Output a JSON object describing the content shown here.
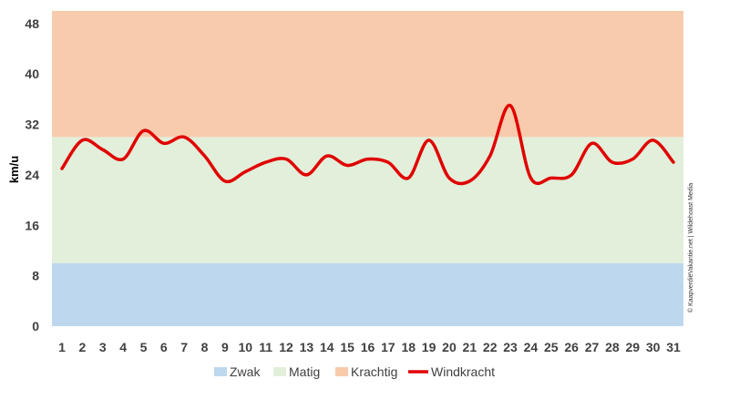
{
  "chart_data": {
    "type": "line",
    "title": "",
    "xlabel": "",
    "ylabel": "km/u",
    "categories": [
      "1",
      "2",
      "3",
      "4",
      "5",
      "6",
      "7",
      "8",
      "9",
      "10",
      "11",
      "12",
      "13",
      "14",
      "15",
      "16",
      "17",
      "18",
      "19",
      "20",
      "21",
      "22",
      "23",
      "24",
      "25",
      "26",
      "27",
      "28",
      "29",
      "30",
      "31"
    ],
    "yticks": [
      0,
      8,
      16,
      24,
      32,
      40,
      48
    ],
    "ylim": [
      0,
      50
    ],
    "bands": [
      {
        "name": "Zwak",
        "from": 0,
        "to": 10,
        "color": "#bdd7ee"
      },
      {
        "name": "Matig",
        "from": 10,
        "to": 30,
        "color": "#e2efda"
      },
      {
        "name": "Krachtig",
        "from": 30,
        "to": 50,
        "color": "#f8cbad"
      }
    ],
    "series": [
      {
        "name": "Windkracht",
        "color": "#e00000",
        "values": [
          25,
          29.5,
          28,
          26.5,
          31,
          29,
          30,
          27,
          23,
          24.5,
          26,
          26.5,
          24,
          27,
          25.5,
          26.5,
          26,
          23.5,
          29.5,
          23.5,
          23,
          27,
          35,
          23.5,
          23.5,
          24,
          29,
          26,
          26.5,
          29.5,
          26
        ]
      }
    ],
    "legend": {
      "position": "bottom",
      "items": [
        "Zwak",
        "Matig",
        "Krachtig",
        "Windkracht"
      ]
    },
    "grid": false
  },
  "credit": "© KaapverdiëVakantie.net | Wildehoast Media"
}
